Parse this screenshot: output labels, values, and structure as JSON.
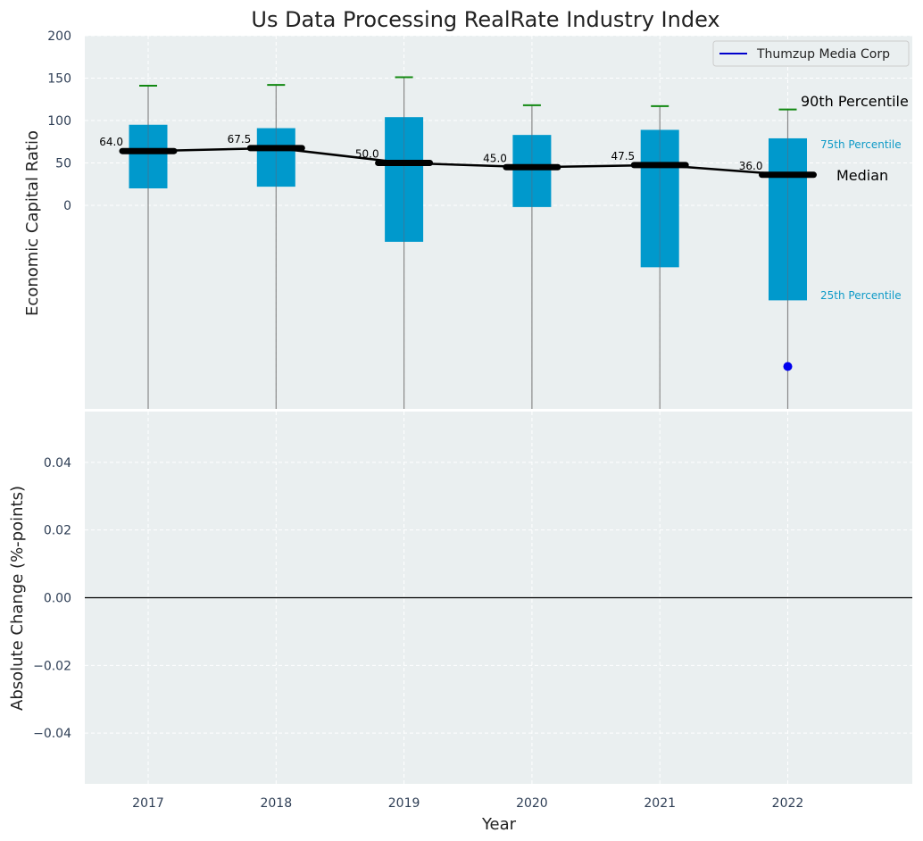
{
  "chart_data": {
    "type": "box",
    "title": "Us Data Processing RealRate Industry Index",
    "colors": {
      "panel_bg": "#eaeff0",
      "box_fill": "#0099cc",
      "whisker_line": "#888888",
      "cap": "#118811",
      "median_line": "#000000",
      "company_marker": "#0000ee",
      "percentile_label": "#0e9ac7"
    },
    "top_panel": {
      "ylabel": "Economic Capital Ratio",
      "ylim": [
        -240,
        200
      ],
      "yticks": [
        0,
        50,
        100,
        150,
        200
      ],
      "grid": true,
      "categories": [
        "2017",
        "2018",
        "2019",
        "2020",
        "2021",
        "2022"
      ],
      "boxes": [
        {
          "year": "2017",
          "p25": 20,
          "p75": 95,
          "median": 64.0,
          "p90": 141,
          "median_label": "64.0"
        },
        {
          "year": "2018",
          "p25": 22,
          "p75": 91,
          "median": 67.5,
          "p90": 142,
          "median_label": "67.5"
        },
        {
          "year": "2019",
          "p25": -43,
          "p75": 104,
          "median": 50.0,
          "p90": 151,
          "median_label": "50.0"
        },
        {
          "year": "2020",
          "p25": -2,
          "p75": 83,
          "median": 45.0,
          "p90": 118,
          "median_label": "45.0"
        },
        {
          "year": "2021",
          "p25": -73,
          "p75": 89,
          "median": 47.5,
          "p90": 117,
          "median_label": "47.5"
        },
        {
          "year": "2022",
          "p25": -112,
          "p75": 79,
          "median": 36.0,
          "p90": 113,
          "median_label": "36.0"
        }
      ],
      "company_series": {
        "name": "Thumzup Media Corp",
        "points": [
          {
            "year": "2022",
            "value": -190
          }
        ]
      },
      "legend": {
        "placement": "top-right",
        "entries": [
          "Thumzup Media Corp"
        ]
      },
      "annotations": {
        "p90": "90th Percentile",
        "p75": "75th Percentile",
        "median": "Median",
        "p25": "25th Percentile"
      }
    },
    "bottom_panel": {
      "ylabel": "Absolute Change (%-points)",
      "xlabel": "Year",
      "ylim": [
        -0.055,
        0.055
      ],
      "yticks": [
        -0.04,
        -0.02,
        0.0,
        0.02,
        0.04
      ],
      "ytick_labels": [
        "−0.04",
        "−0.02",
        "0.00",
        "0.02",
        "0.04"
      ],
      "categories": [
        "2017",
        "2018",
        "2019",
        "2020",
        "2021",
        "2022"
      ],
      "grid": true,
      "zero_line": true
    }
  }
}
